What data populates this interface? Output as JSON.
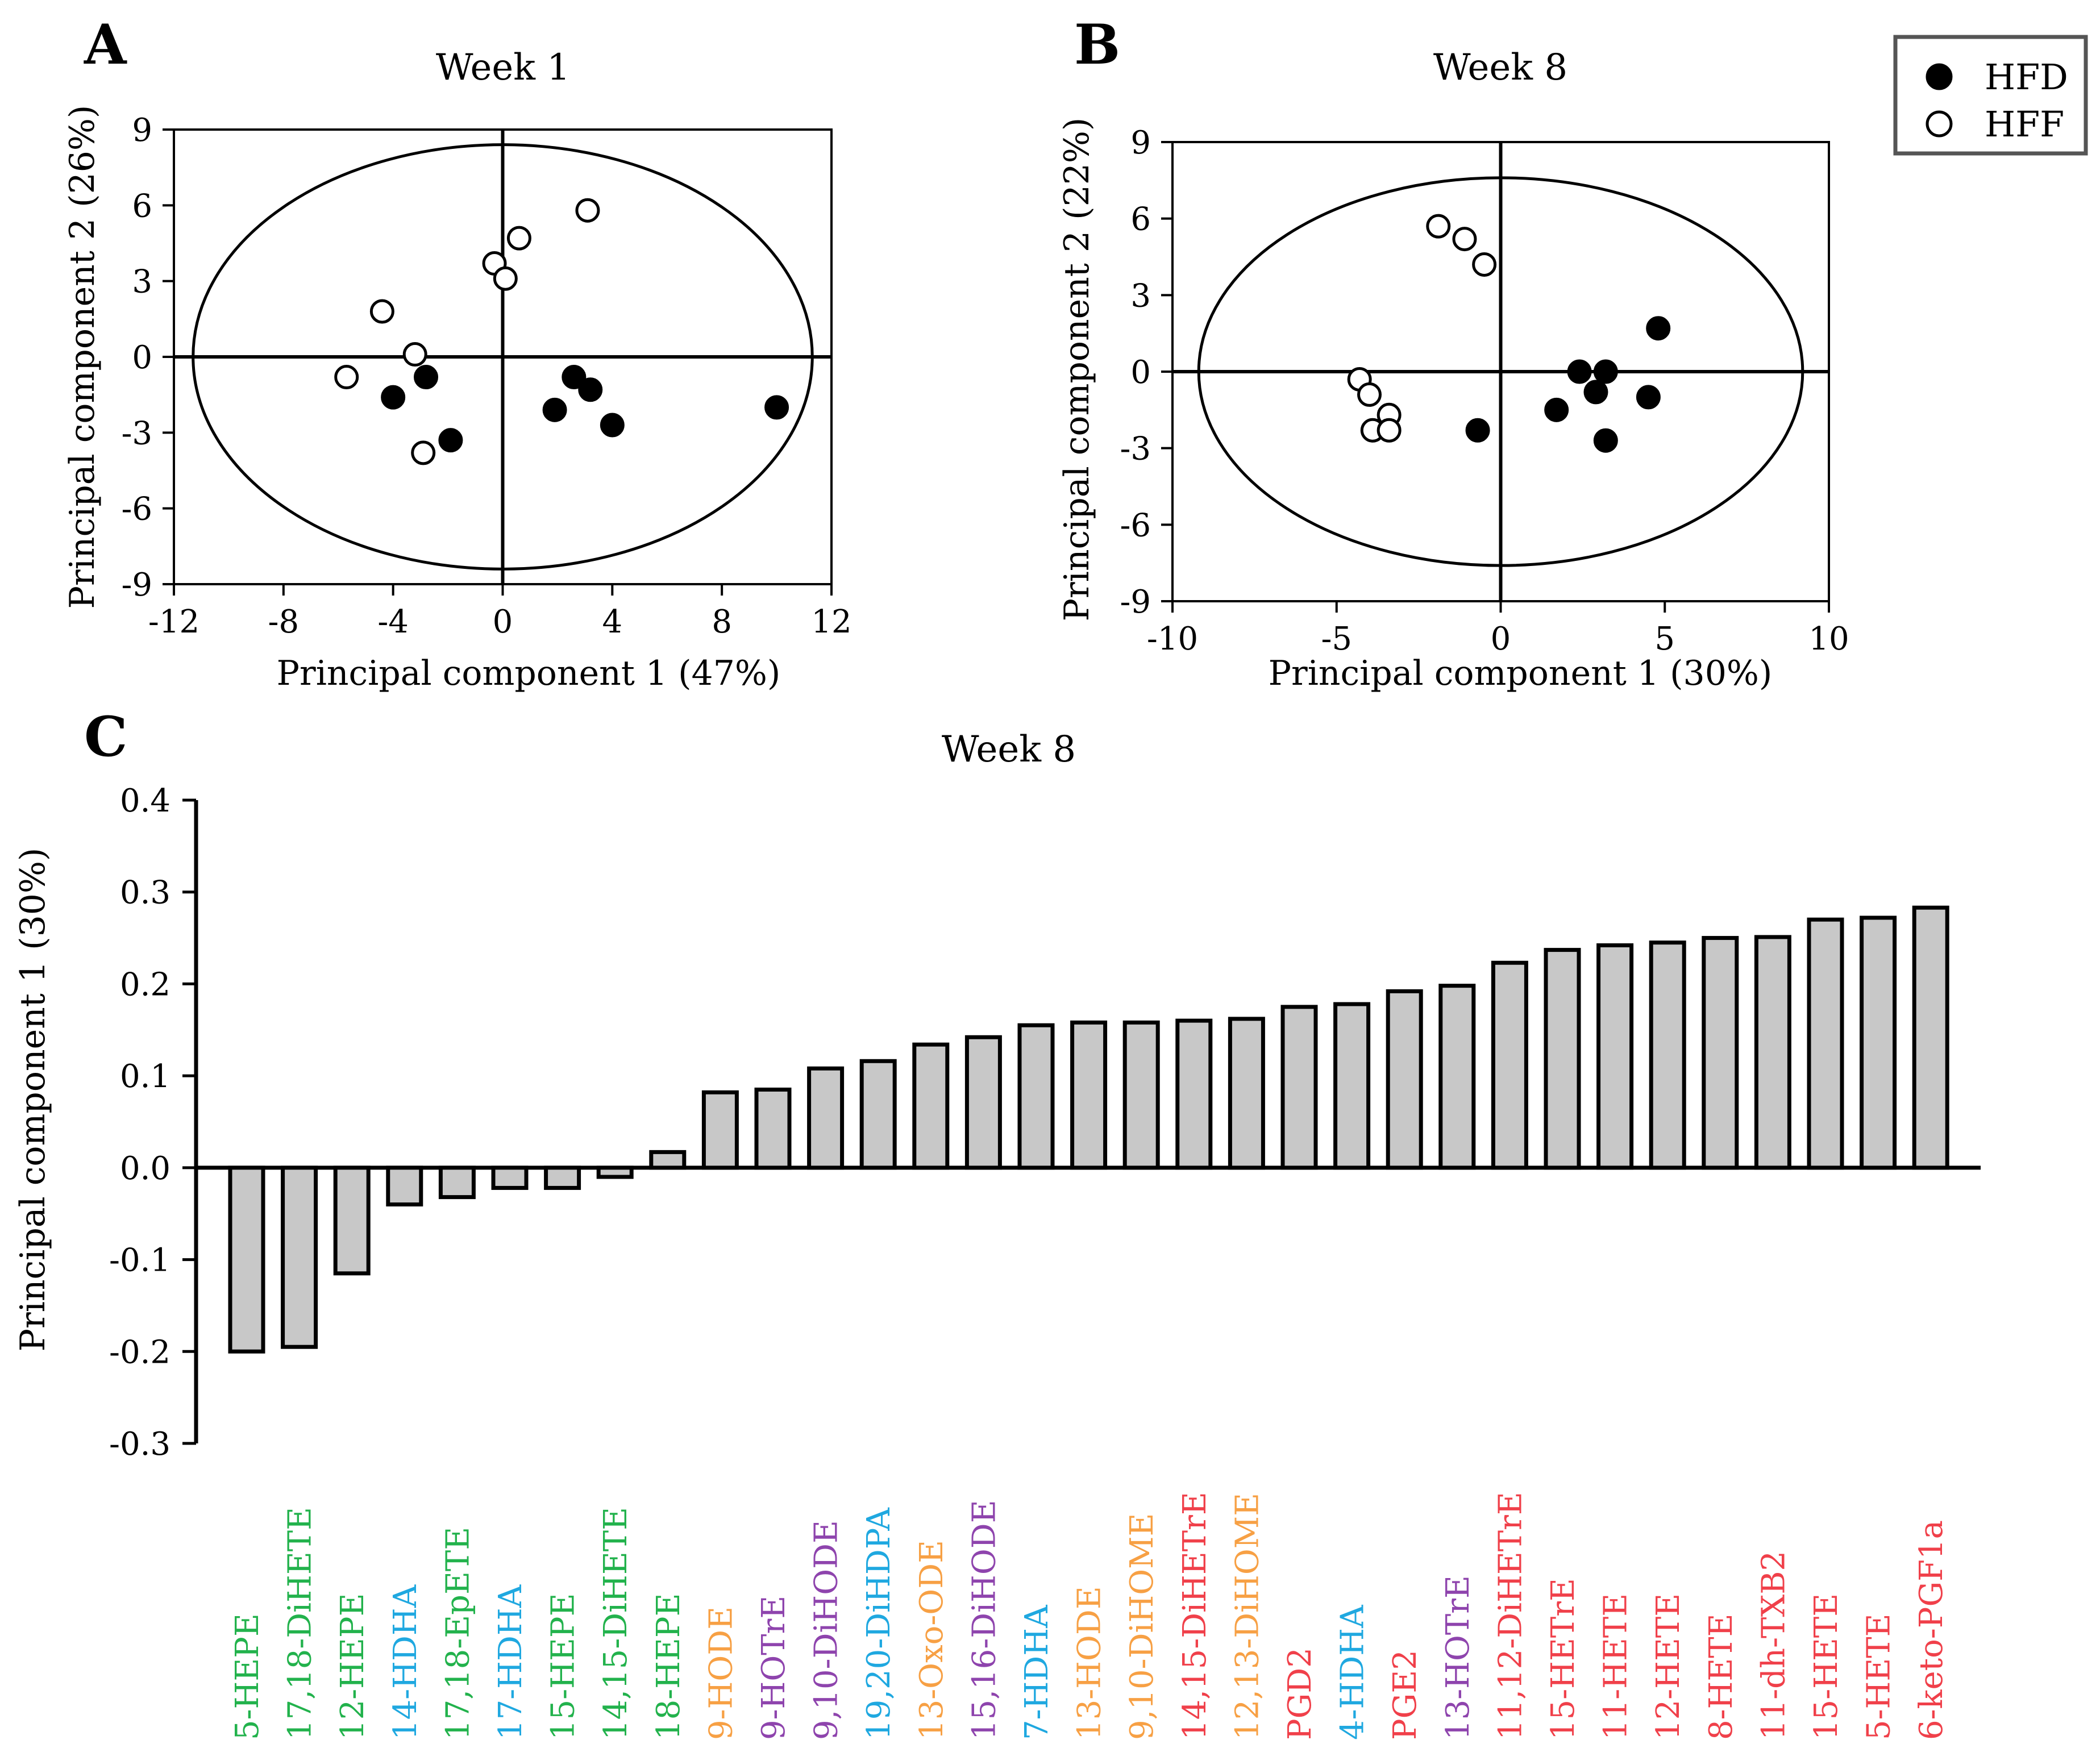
{
  "legend": {
    "items": [
      {
        "label": "HFD",
        "fill": "#000000"
      },
      {
        "label": "HFF",
        "fill": "#ffffff"
      }
    ]
  },
  "colors": {
    "green": "#22b24c",
    "blue": "#1fa8e0",
    "orange": "#f7a044",
    "purple": "#8e44ad",
    "red": "#f0404a",
    "bar_fill": "#c8c8c8"
  },
  "chart_data": [
    {
      "id": "A",
      "panel_label": "A",
      "type": "scatter",
      "title": "Week 1",
      "xlabel": "Principal component 1 (47%)",
      "ylabel": "Principal component 2 (26%)",
      "xlim": [
        -12,
        12
      ],
      "ylim": [
        -9,
        9
      ],
      "xticks": [
        -12,
        -8,
        -4,
        0,
        4,
        8,
        12
      ],
      "yticks": [
        -9,
        -6,
        -3,
        0,
        3,
        6,
        9
      ],
      "xtick_labels": [
        "-12",
        "-8",
        "-4",
        "0",
        "4",
        "8",
        "12"
      ],
      "ytick_labels": [
        "-9",
        "-6",
        "-3",
        "0",
        "3",
        "6",
        "9"
      ],
      "ellipse": {
        "cx": 0,
        "cy": 0,
        "rx": 11.3,
        "ry": 8.4
      },
      "series": [
        {
          "name": "HFD",
          "points": [
            [
              -4,
              -1.6
            ],
            [
              -2.8,
              -0.8
            ],
            [
              -1.9,
              -3.3
            ],
            [
              1.9,
              -2.1
            ],
            [
              2.6,
              -0.8
            ],
            [
              3.2,
              -1.3
            ],
            [
              4,
              -2.7
            ],
            [
              10,
              -2
            ]
          ]
        },
        {
          "name": "HFF",
          "points": [
            [
              -5.7,
              -0.8
            ],
            [
              -4.4,
              1.8
            ],
            [
              -3.2,
              0.1
            ],
            [
              -2.9,
              -3.8
            ],
            [
              -0.3,
              3.7
            ],
            [
              0.1,
              3.1
            ],
            [
              0.6,
              4.7
            ],
            [
              3.1,
              5.8
            ]
          ]
        }
      ]
    },
    {
      "id": "B",
      "panel_label": "B",
      "type": "scatter",
      "title": "Week 8",
      "xlabel": "Principal component 1 (30%)",
      "ylabel": "Principal component 2 (22%)",
      "xlim": [
        -10,
        10
      ],
      "ylim": [
        -9,
        9
      ],
      "xticks": [
        -10,
        -5,
        0,
        5,
        10
      ],
      "yticks": [
        -9,
        -6,
        -3,
        0,
        3,
        6,
        9
      ],
      "xtick_labels": [
        "-10",
        "-5",
        "0",
        "5",
        "10"
      ],
      "ytick_labels": [
        "-9",
        "-6",
        "-3",
        "0",
        "3",
        "6",
        "9"
      ],
      "ellipse": {
        "cx": 0,
        "cy": 0,
        "rx": 9.2,
        "ry": 7.6
      },
      "series": [
        {
          "name": "HFD",
          "points": [
            [
              -0.7,
              -2.3
            ],
            [
              1.7,
              -1.5
            ],
            [
              2.4,
              0
            ],
            [
              2.9,
              -0.8
            ],
            [
              3.2,
              0
            ],
            [
              3.2,
              -2.7
            ],
            [
              4.5,
              -1
            ],
            [
              4.8,
              1.7
            ]
          ]
        },
        {
          "name": "HFF",
          "points": [
            [
              -4.3,
              -0.3
            ],
            [
              -4,
              -0.9
            ],
            [
              -3.9,
              -2.3
            ],
            [
              -3.4,
              -1.7
            ],
            [
              -3.4,
              -2.3
            ],
            [
              -1.9,
              5.7
            ],
            [
              -1.1,
              5.2
            ],
            [
              -0.5,
              4.2
            ]
          ]
        }
      ]
    },
    {
      "id": "C",
      "panel_label": "C",
      "type": "bar",
      "title": "Week 8",
      "xlabel": "",
      "ylabel": "Principal component 1 (30%)",
      "ylim": [
        -0.3,
        0.4
      ],
      "yticks": [
        -0.3,
        -0.2,
        -0.1,
        0.0,
        0.1,
        0.2,
        0.3,
        0.4
      ],
      "ytick_labels": [
        "-0.3",
        "-0.2",
        "-0.1",
        "0.0",
        "0.1",
        "0.2",
        "0.3",
        "0.4"
      ],
      "categories": [
        "5-HEPE",
        "17,18-DiHETE",
        "12-HEPE",
        "14-HDHA",
        "17,18-EpETE",
        "17-HDHA",
        "15-HEPE",
        "14,15-DiHETE",
        "18-HEPE",
        "9-HODE",
        "9-HOTrE",
        "9,10-DiHODE",
        "19,20-DiHDPA",
        "13-Oxo-ODE",
        "15,16-DiHODE",
        "7-HDHA",
        "13-HODE",
        "9,10-DiHOME",
        "14,15-DiHETrE",
        "12,13-DiHOME",
        "PGD2",
        "4-HDHA",
        "PGE2",
        "13-HOTrE",
        "11,12-DiHETrE",
        "15-HETrE",
        "11-HETE",
        "12-HETE",
        "8-HETE",
        "11-dh-TXB2",
        "15-HETE",
        "5-HETE",
        "6-keto-PGF1a"
      ],
      "category_colors": [
        "green",
        "green",
        "green",
        "blue",
        "green",
        "blue",
        "green",
        "green",
        "green",
        "orange",
        "purple",
        "purple",
        "blue",
        "orange",
        "purple",
        "blue",
        "orange",
        "orange",
        "red",
        "orange",
        "red",
        "blue",
        "red",
        "purple",
        "red",
        "red",
        "red",
        "red",
        "red",
        "red",
        "red",
        "red",
        "red"
      ],
      "values": [
        -0.2,
        -0.195,
        -0.115,
        -0.04,
        -0.032,
        -0.022,
        -0.022,
        -0.01,
        0.017,
        0.082,
        0.085,
        0.108,
        0.116,
        0.134,
        0.142,
        0.155,
        0.158,
        0.158,
        0.16,
        0.162,
        0.175,
        0.178,
        0.192,
        0.198,
        0.223,
        0.237,
        0.242,
        0.245,
        0.25,
        0.251,
        0.27,
        0.272,
        0.283
      ]
    }
  ]
}
